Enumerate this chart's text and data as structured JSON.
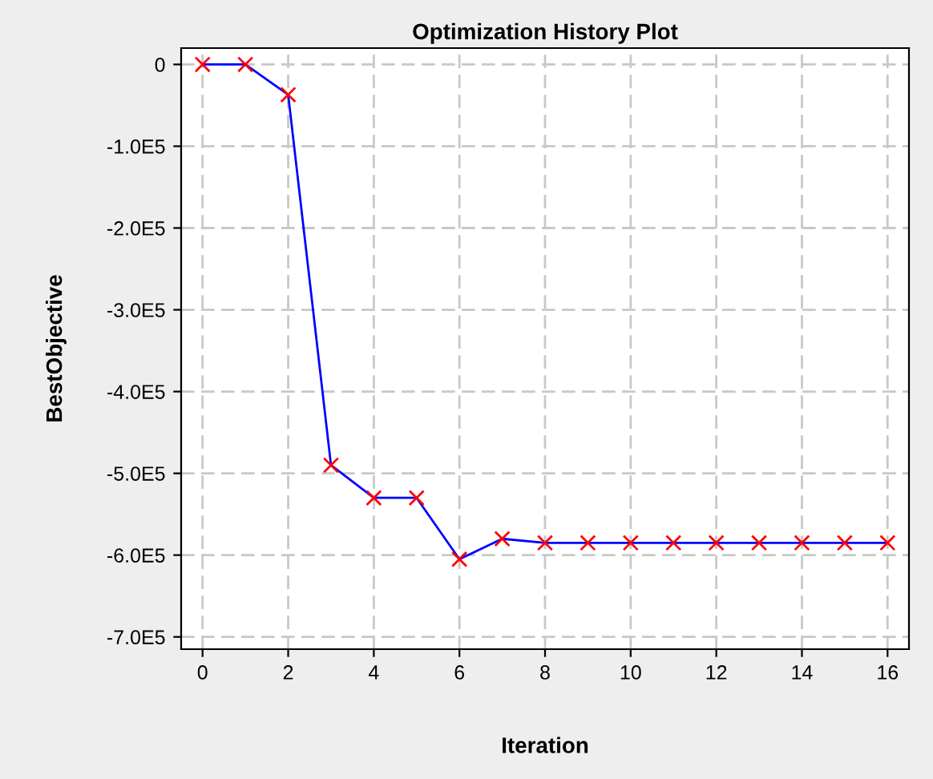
{
  "chart_data": {
    "type": "line",
    "title": "Optimization History Plot",
    "xlabel": "Iteration",
    "ylabel": "BestObjective",
    "x": [
      0,
      1,
      2,
      3,
      4,
      5,
      6,
      7,
      8,
      9,
      10,
      11,
      12,
      13,
      14,
      15,
      16
    ],
    "series": [
      {
        "color": "#0000ff",
        "colors": [
          "#ff0000",
          "#ff0000",
          "#ff0000",
          "#ff0000",
          "#ff0000",
          "#ff0000",
          "#ff0000",
          "#ff0000",
          "#ff0000",
          "#ff0000",
          "#ff0000",
          "#ff0000",
          "#ff0000",
          "#ff0000",
          "#ff0000",
          "#ff0000",
          "#ff0000"
        ],
        "values": [
          0,
          0,
          -37000,
          -490000,
          -530000,
          -530000,
          -605000,
          -580000,
          -585000,
          -585000,
          -585000,
          -585000,
          -585000,
          -585000,
          -585000,
          -585000,
          -585000
        ]
      }
    ],
    "xlim": [
      -0.5,
      16.5
    ],
    "xticks": [
      0,
      2,
      4,
      6,
      8,
      10,
      12,
      14,
      16
    ],
    "ylim": [
      -715000,
      20000
    ],
    "yticks": [
      {
        "value": 0,
        "label": "0"
      },
      {
        "value": -100000,
        "label": "-1.0E5"
      },
      {
        "value": -200000,
        "label": "-2.0E5"
      },
      {
        "value": -300000,
        "label": "-3.0E5"
      },
      {
        "value": -400000,
        "label": "-4.0E5"
      },
      {
        "value": -500000,
        "label": "-5.0E5"
      },
      {
        "value": -600000,
        "label": "-6.0E5"
      },
      {
        "value": -700000,
        "label": "-7.0E5"
      }
    ],
    "grid": true,
    "marker": "cross",
    "line_style": "solid",
    "legend": false
  }
}
